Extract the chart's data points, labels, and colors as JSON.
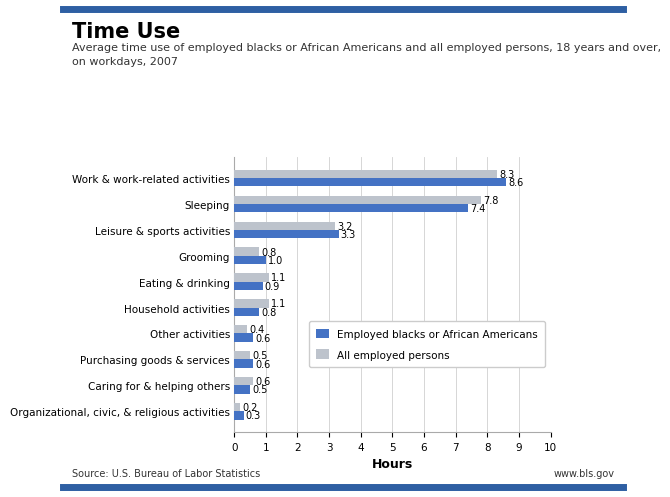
{
  "title": "Time Use",
  "subtitle": "Average time use of employed blacks or African Americans and all employed persons, 18 years and over,\non workdays, 2007",
  "categories": [
    "Work & work-related activities",
    "Sleeping",
    "Leisure & sports activities",
    "Grooming",
    "Eating & drinking",
    "Household activities",
    "Other activities",
    "Purchasing goods & services",
    "Caring for & helping others",
    "Organizational, civic, & religious activities"
  ],
  "blacks_values": [
    8.6,
    7.4,
    3.3,
    1.0,
    0.9,
    0.8,
    0.6,
    0.6,
    0.5,
    0.3
  ],
  "all_values": [
    8.3,
    7.8,
    3.2,
    0.8,
    1.1,
    1.1,
    0.4,
    0.5,
    0.6,
    0.2
  ],
  "blacks_color": "#4472c4",
  "all_color": "#bdc3cc",
  "xlabel": "Hours",
  "xlim": [
    0,
    10
  ],
  "xticks": [
    0,
    1,
    2,
    3,
    4,
    5,
    6,
    7,
    8,
    9,
    10
  ],
  "legend_blacks": "Employed blacks or African Americans",
  "legend_all": "All employed persons",
  "source": "Source: U.S. Bureau of Labor Statistics",
  "website": "www.bls.gov",
  "bar_height": 0.32,
  "background_color": "#ffffff",
  "border_color": "#2e5fa3",
  "title_fontsize": 15,
  "subtitle_fontsize": 8,
  "value_fontsize": 7,
  "axis_fontsize": 7.5
}
